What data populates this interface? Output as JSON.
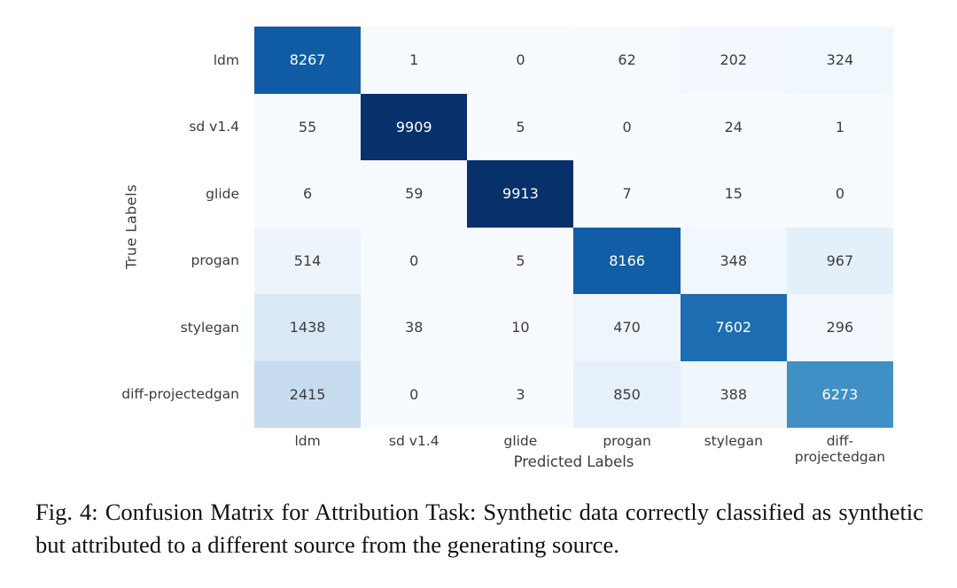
{
  "figure": {
    "caption": "Fig. 4: Confusion Matrix for Attribution Task: Synthetic data correctly classified as synthetic but attributed to a different source from the generating source."
  },
  "chart_data": {
    "type": "heatmap",
    "title": "",
    "xlabel": "Predicted Labels",
    "ylabel": "True Labels",
    "x_categories": [
      "ldm",
      "sd v1.4",
      "glide",
      "progan",
      "stylegan",
      "diff-projectedgan"
    ],
    "y_categories": [
      "ldm",
      "sd v1.4",
      "glide",
      "progan",
      "stylegan",
      "diff-projectedgan"
    ],
    "matrix": [
      [
        8267,
        1,
        0,
        62,
        202,
        324
      ],
      [
        55,
        9909,
        5,
        0,
        24,
        1
      ],
      [
        6,
        59,
        9913,
        7,
        15,
        0
      ],
      [
        514,
        0,
        5,
        8166,
        348,
        967
      ],
      [
        1438,
        38,
        10,
        470,
        7602,
        296
      ],
      [
        2415,
        0,
        3,
        850,
        388,
        6273
      ]
    ],
    "vmin": 0,
    "vmax": 9913,
    "colormap_name": "Blues",
    "colormap_anchors": [
      {
        "pos": 0.0,
        "color": "#f7fbff"
      },
      {
        "pos": 0.125,
        "color": "#deebf7"
      },
      {
        "pos": 0.25,
        "color": "#c6dbef"
      },
      {
        "pos": 0.375,
        "color": "#9ecae1"
      },
      {
        "pos": 0.5,
        "color": "#6baed6"
      },
      {
        "pos": 0.625,
        "color": "#4292c6"
      },
      {
        "pos": 0.75,
        "color": "#2171b5"
      },
      {
        "pos": 0.875,
        "color": "#08519c"
      },
      {
        "pos": 1.0,
        "color": "#08306b"
      }
    ],
    "annotation_text_dark": "#3d3d3d",
    "annotation_text_light": "#ffffff",
    "tick_label_color": "#3b3b3b",
    "grid": false,
    "legend": "none",
    "annotations": true
  }
}
